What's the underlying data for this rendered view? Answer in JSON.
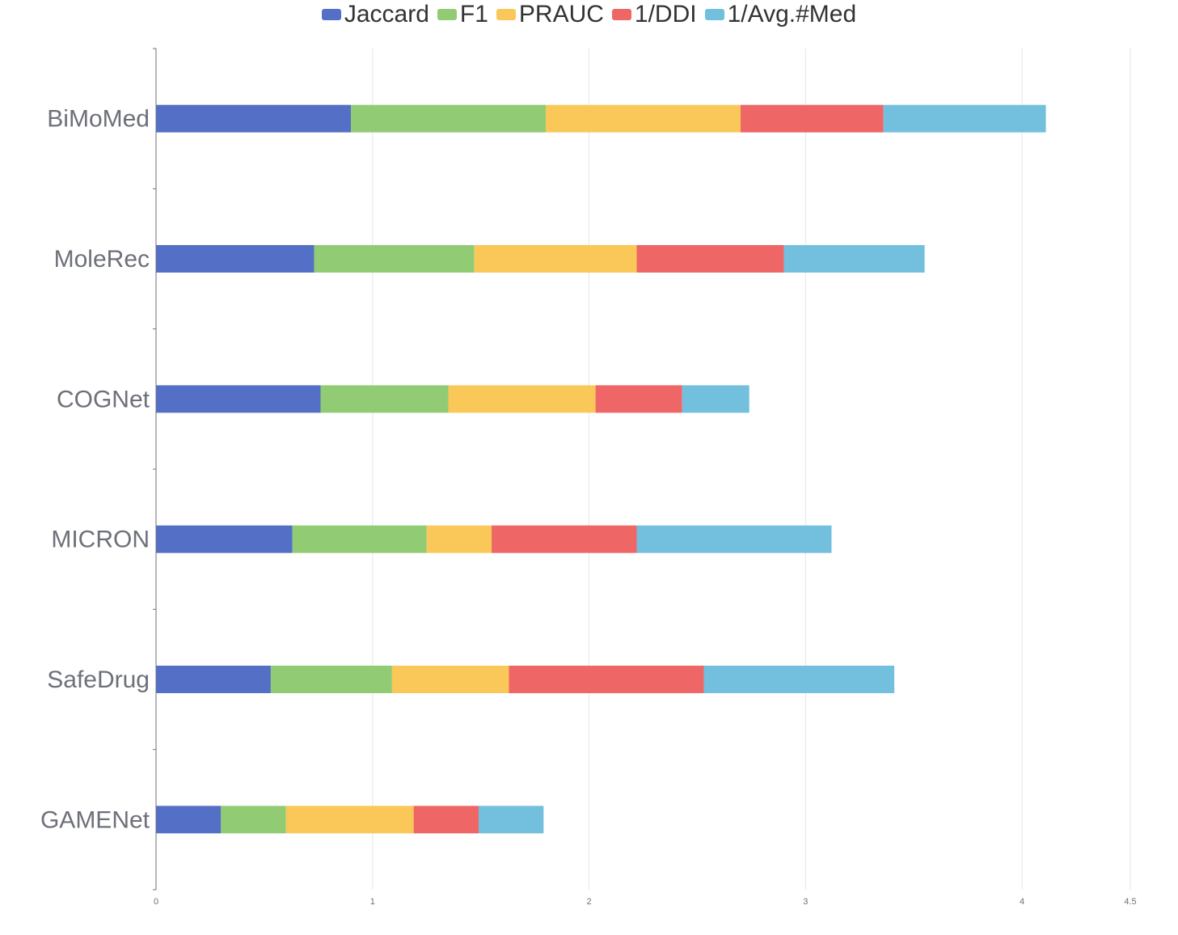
{
  "chart_data": {
    "type": "bar",
    "orientation": "horizontal",
    "stacked": true,
    "categories": [
      "GAMENet",
      "SafeDrug",
      "MICRON",
      "COGNet",
      "MoleRec",
      "BiMoMed"
    ],
    "series": [
      {
        "name": "Jaccard",
        "color": "#5470c6",
        "values": [
          0.3,
          0.53,
          0.63,
          0.76,
          0.73,
          0.9
        ]
      },
      {
        "name": "F1",
        "color": "#91cc75",
        "values": [
          0.3,
          0.56,
          0.62,
          0.59,
          0.74,
          0.9
        ]
      },
      {
        "name": "PRAUC",
        "color": "#fac858",
        "values": [
          0.59,
          0.54,
          0.3,
          0.68,
          0.75,
          0.9
        ]
      },
      {
        "name": "1/DDI",
        "color": "#ee6666",
        "values": [
          0.3,
          0.9,
          0.67,
          0.4,
          0.68,
          0.66
        ]
      },
      {
        "name": "1/Avg.#Med",
        "color": "#73c0de",
        "values": [
          0.3,
          0.88,
          0.9,
          0.31,
          0.65,
          0.75
        ]
      }
    ],
    "x_ticks": [
      "0",
      "1",
      "2",
      "3",
      "4",
      "4.5"
    ],
    "xlim": [
      0,
      4.5
    ],
    "grid": true,
    "legend_position": "top-center"
  }
}
